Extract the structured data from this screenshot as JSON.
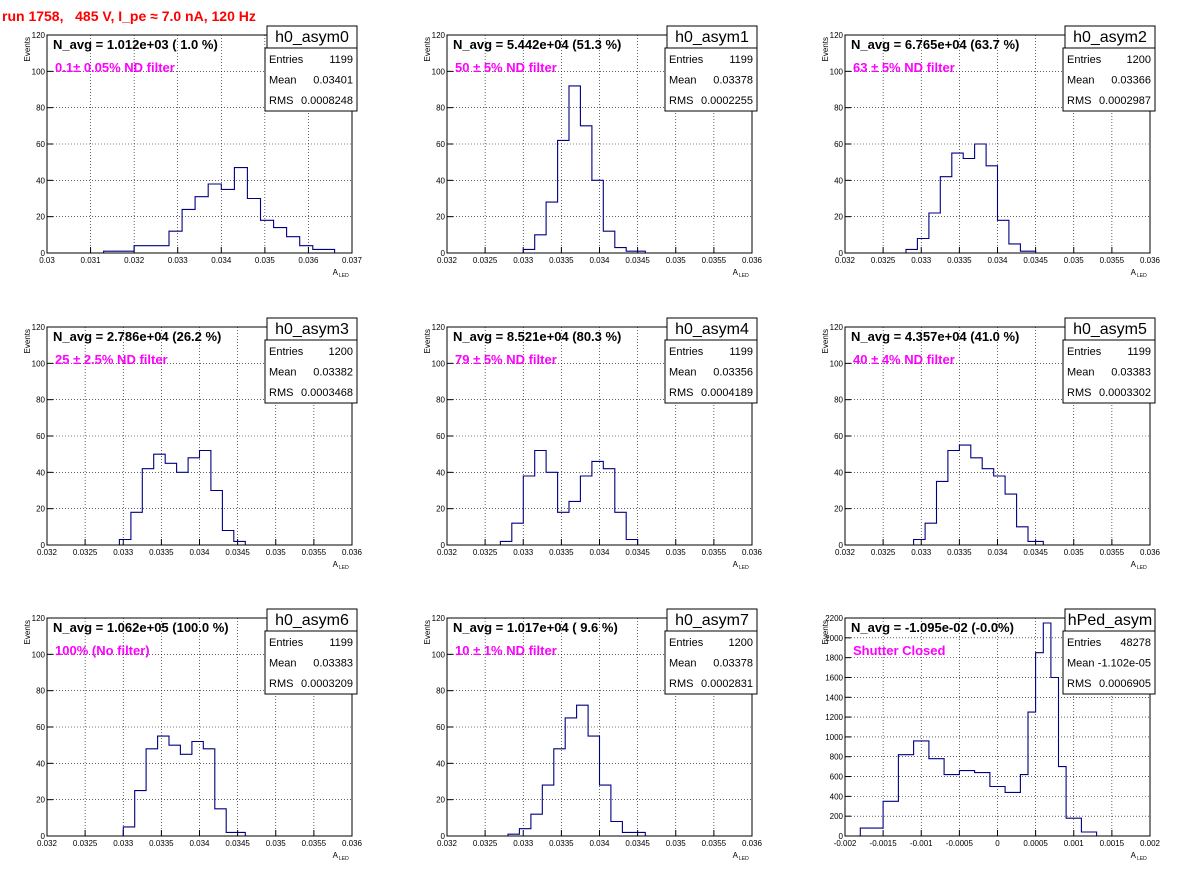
{
  "header": {
    "run_title": "run 1758,   485 V, I_pe ≈ 7.0 nA, 120 Hz"
  },
  "chart_data": [
    {
      "type": "bar",
      "title": "h0_asym0",
      "navg": "N_avg = 1.012e+03 ( 1.0 %)",
      "filter": "0.1± 0.05% ND filter",
      "stats": {
        "entries": "1199",
        "mean": "0.03401",
        "rms": "0.0008248"
      },
      "xlabel": "A",
      "xlabel_sub": "LED",
      "ylabel": "Events",
      "xlim": [
        0.03,
        0.037
      ],
      "ylim": [
        0,
        120
      ],
      "xticks": [
        0.03,
        0.031,
        0.032,
        0.033,
        0.034,
        0.035,
        0.036,
        0.037
      ],
      "xtick_labels": [
        "0.03",
        "0.031",
        "0.032",
        "0.033",
        "0.034",
        "0.035",
        "0.036",
        "0.037"
      ],
      "yticks": [
        0,
        20,
        40,
        60,
        80,
        100,
        120
      ],
      "ytick_labels": [
        "0",
        "20",
        "40",
        "60",
        "80",
        "100",
        "120"
      ],
      "bin_edges": [
        0.0313,
        0.032,
        0.0328,
        0.0331,
        0.0334,
        0.0337,
        0.034,
        0.0343,
        0.0346,
        0.0349,
        0.0352,
        0.0355,
        0.0358,
        0.0361,
        0.0366
      ],
      "values": [
        1,
        4,
        12,
        24,
        31,
        38,
        35,
        47,
        30,
        18,
        14,
        9,
        4,
        2
      ]
    },
    {
      "type": "bar",
      "title": "h0_asym1",
      "navg": "N_avg = 5.442e+04 (51.3 %)",
      "filter": "50 ± 5% ND filter",
      "stats": {
        "entries": "1199",
        "mean": "0.03378",
        "rms": "0.0002255"
      },
      "xlabel": "A",
      "xlabel_sub": "LED",
      "ylabel": "Events",
      "xlim": [
        0.032,
        0.036
      ],
      "ylim": [
        0,
        120
      ],
      "xticks": [
        0.032,
        0.0325,
        0.033,
        0.0335,
        0.034,
        0.0345,
        0.035,
        0.0355,
        0.036
      ],
      "xtick_labels": [
        "0.032",
        "0.0325",
        "0.033",
        "0.0335",
        "0.034",
        "0.0345",
        "0.035",
        "0.0355",
        "0.036"
      ],
      "yticks": [
        0,
        20,
        40,
        60,
        80,
        100,
        120
      ],
      "ytick_labels": [
        "0",
        "20",
        "40",
        "60",
        "80",
        "100",
        "120"
      ],
      "bin_edges": [
        0.033,
        0.03315,
        0.0333,
        0.03345,
        0.0336,
        0.03375,
        0.0339,
        0.03405,
        0.0342,
        0.03435,
        0.0346
      ],
      "values": [
        2,
        10,
        28,
        62,
        92,
        70,
        40,
        12,
        3,
        1
      ]
    },
    {
      "type": "bar",
      "title": "h0_asym2",
      "navg": "N_avg = 6.765e+04 (63.7 %)",
      "filter": "63 ± 5% ND filter",
      "stats": {
        "entries": "1200",
        "mean": "0.03366",
        "rms": "0.0002987"
      },
      "xlabel": "A",
      "xlabel_sub": "LED",
      "ylabel": "Events",
      "xlim": [
        0.032,
        0.036
      ],
      "ylim": [
        0,
        120
      ],
      "xticks": [
        0.032,
        0.0325,
        0.033,
        0.0335,
        0.034,
        0.0345,
        0.035,
        0.0355,
        0.036
      ],
      "xtick_labels": [
        "0.032",
        "0.0325",
        "0.033",
        "0.0335",
        "0.034",
        "0.0345",
        "0.035",
        "0.0355",
        "0.036"
      ],
      "yticks": [
        0,
        20,
        40,
        60,
        80,
        100,
        120
      ],
      "ytick_labels": [
        "0",
        "20",
        "40",
        "60",
        "80",
        "100",
        "120"
      ],
      "bin_edges": [
        0.0328,
        0.03295,
        0.0331,
        0.03325,
        0.0334,
        0.03355,
        0.0337,
        0.03385,
        0.034,
        0.03415,
        0.0343,
        0.0345
      ],
      "values": [
        2,
        8,
        22,
        42,
        55,
        52,
        60,
        48,
        18,
        5,
        1
      ]
    },
    {
      "type": "bar",
      "title": "h0_asym3",
      "navg": "N_avg = 2.786e+04 (26.2 %)",
      "filter": "25 ± 2.5% ND filter",
      "stats": {
        "entries": "1200",
        "mean": "0.03382",
        "rms": "0.0003468"
      },
      "xlabel": "A",
      "xlabel_sub": "LED",
      "ylabel": "Events",
      "xlim": [
        0.032,
        0.036
      ],
      "ylim": [
        0,
        120
      ],
      "xticks": [
        0.032,
        0.0325,
        0.033,
        0.0335,
        0.034,
        0.0345,
        0.035,
        0.0355,
        0.036
      ],
      "xtick_labels": [
        "0.032",
        "0.0325",
        "0.033",
        "0.0335",
        "0.034",
        "0.0345",
        "0.035",
        "0.0355",
        "0.036"
      ],
      "yticks": [
        0,
        20,
        40,
        60,
        80,
        100,
        120
      ],
      "ytick_labels": [
        "0",
        "20",
        "40",
        "60",
        "80",
        "100",
        "120"
      ],
      "bin_edges": [
        0.03295,
        0.0331,
        0.03325,
        0.0334,
        0.03355,
        0.0337,
        0.03385,
        0.034,
        0.03415,
        0.0343,
        0.03445,
        0.0346
      ],
      "values": [
        3,
        18,
        42,
        50,
        45,
        40,
        48,
        52,
        30,
        8,
        2
      ]
    },
    {
      "type": "bar",
      "title": "h0_asym4",
      "navg": "N_avg = 8.521e+04 (80.3 %)",
      "filter": "79 ± 5% ND filter",
      "stats": {
        "entries": "1199",
        "mean": "0.03356",
        "rms": "0.0004189"
      },
      "xlabel": "A",
      "xlabel_sub": "LED",
      "ylabel": "Events",
      "xlim": [
        0.032,
        0.036
      ],
      "ylim": [
        0,
        120
      ],
      "xticks": [
        0.032,
        0.0325,
        0.033,
        0.0335,
        0.034,
        0.0345,
        0.035,
        0.0355,
        0.036
      ],
      "xtick_labels": [
        "0.032",
        "0.0325",
        "0.033",
        "0.0335",
        "0.034",
        "0.0345",
        "0.035",
        "0.0355",
        "0.036"
      ],
      "yticks": [
        0,
        20,
        40,
        60,
        80,
        100,
        120
      ],
      "ytick_labels": [
        "0",
        "20",
        "40",
        "60",
        "80",
        "100",
        "120"
      ],
      "bin_edges": [
        0.0327,
        0.03285,
        0.033,
        0.03315,
        0.0333,
        0.03345,
        0.0336,
        0.03375,
        0.0339,
        0.03405,
        0.0342,
        0.03435,
        0.0345
      ],
      "values": [
        2,
        12,
        38,
        52,
        40,
        18,
        24,
        38,
        46,
        42,
        18,
        3
      ]
    },
    {
      "type": "bar",
      "title": "h0_asym5",
      "navg": "N_avg = 4.357e+04 (41.0 %)",
      "filter": "40 ± 4% ND filter",
      "stats": {
        "entries": "1199",
        "mean": "0.03383",
        "rms": "0.0003302"
      },
      "xlabel": "A",
      "xlabel_sub": "LED",
      "ylabel": "Events",
      "xlim": [
        0.032,
        0.036
      ],
      "ylim": [
        0,
        120
      ],
      "xticks": [
        0.032,
        0.0325,
        0.033,
        0.0335,
        0.034,
        0.0345,
        0.035,
        0.0355,
        0.036
      ],
      "xtick_labels": [
        "0.032",
        "0.0325",
        "0.033",
        "0.0335",
        "0.034",
        "0.0345",
        "0.035",
        "0.0355",
        "0.036"
      ],
      "yticks": [
        0,
        20,
        40,
        60,
        80,
        100,
        120
      ],
      "ytick_labels": [
        "0",
        "20",
        "40",
        "60",
        "80",
        "100",
        "120"
      ],
      "bin_edges": [
        0.0329,
        0.03305,
        0.0332,
        0.03335,
        0.0335,
        0.03365,
        0.0338,
        0.03395,
        0.0341,
        0.03425,
        0.0344,
        0.0346
      ],
      "values": [
        3,
        12,
        35,
        52,
        55,
        48,
        42,
        38,
        28,
        10,
        2
      ]
    },
    {
      "type": "bar",
      "title": "h0_asym6",
      "navg": "N_avg = 1.062e+05 (100.0 %)",
      "filter": "100% (No filter)",
      "stats": {
        "entries": "1199",
        "mean": "0.03383",
        "rms": "0.0003209"
      },
      "xlabel": "A",
      "xlabel_sub": "LED",
      "ylabel": "Events",
      "xlim": [
        0.032,
        0.036
      ],
      "ylim": [
        0,
        120
      ],
      "xticks": [
        0.032,
        0.0325,
        0.033,
        0.0335,
        0.034,
        0.0345,
        0.035,
        0.0355,
        0.036
      ],
      "xtick_labels": [
        "0.032",
        "0.0325",
        "0.033",
        "0.0335",
        "0.034",
        "0.0345",
        "0.035",
        "0.0355",
        "0.036"
      ],
      "yticks": [
        0,
        20,
        40,
        60,
        80,
        100,
        120
      ],
      "ytick_labels": [
        "0",
        "20",
        "40",
        "60",
        "80",
        "100",
        "120"
      ],
      "bin_edges": [
        0.033,
        0.03315,
        0.0333,
        0.03345,
        0.0336,
        0.03375,
        0.0339,
        0.03405,
        0.0342,
        0.03435,
        0.0346
      ],
      "values": [
        5,
        25,
        48,
        55,
        50,
        45,
        52,
        48,
        15,
        2
      ]
    },
    {
      "type": "bar",
      "title": "h0_asym7",
      "navg": "N_avg = 1.017e+04 ( 9.6 %)",
      "filter": "10 ± 1% ND filter",
      "stats": {
        "entries": "1200",
        "mean": "0.03378",
        "rms": "0.0002831"
      },
      "xlabel": "A",
      "xlabel_sub": "LED",
      "ylabel": "Events",
      "xlim": [
        0.032,
        0.036
      ],
      "ylim": [
        0,
        120
      ],
      "xticks": [
        0.032,
        0.0325,
        0.033,
        0.0335,
        0.034,
        0.0345,
        0.035,
        0.0355,
        0.036
      ],
      "xtick_labels": [
        "0.032",
        "0.0325",
        "0.033",
        "0.0335",
        "0.034",
        "0.0345",
        "0.035",
        "0.0355",
        "0.036"
      ],
      "yticks": [
        0,
        20,
        40,
        60,
        80,
        100,
        120
      ],
      "ytick_labels": [
        "0",
        "20",
        "40",
        "60",
        "80",
        "100",
        "120"
      ],
      "bin_edges": [
        0.0328,
        0.03295,
        0.0331,
        0.03325,
        0.0334,
        0.03355,
        0.0337,
        0.03385,
        0.034,
        0.03415,
        0.0343,
        0.0346
      ],
      "values": [
        1,
        4,
        12,
        28,
        48,
        65,
        72,
        55,
        28,
        8,
        2
      ]
    },
    {
      "type": "bar",
      "title": "hPed_asym",
      "navg": "N_avg = -1.095e-02 (-0.0%)",
      "filter": "Shutter Closed",
      "stats": {
        "entries": "48278",
        "mean": "-1.102e-05",
        "rms": "0.0006905"
      },
      "xlabel": "A",
      "xlabel_sub": "LED",
      "ylabel": "Events",
      "xlim": [
        -0.002,
        0.002
      ],
      "ylim": [
        0,
        2200
      ],
      "xticks": [
        -0.002,
        -0.0015,
        -0.001,
        -0.0005,
        0,
        0.0005,
        0.001,
        0.0015,
        0.002
      ],
      "xtick_labels": [
        "-0.002",
        "-0.0015",
        "-0.001",
        "-0.0005",
        "0",
        "0.0005",
        "0.001",
        "0.0015",
        "0.002"
      ],
      "yticks": [
        0,
        200,
        400,
        600,
        800,
        1000,
        1200,
        1400,
        1600,
        1800,
        2000,
        2200
      ],
      "ytick_labels": [
        "0",
        "200",
        "400",
        "600",
        "800",
        "1000",
        "1200",
        "1400",
        "1600",
        "1800",
        "2000",
        "2200"
      ],
      "bin_edges": [
        -0.0018,
        -0.0015,
        -0.0013,
        -0.0011,
        -0.0009,
        -0.0007,
        -0.0005,
        -0.0003,
        -0.0001,
        0.0001,
        0.0003,
        0.0004,
        0.0005,
        0.0006,
        0.0007,
        0.0008,
        0.0009,
        0.0011,
        0.0013
      ],
      "values": [
        80,
        350,
        820,
        960,
        780,
        620,
        660,
        640,
        500,
        440,
        620,
        1250,
        1850,
        2150,
        1600,
        700,
        180,
        40
      ]
    }
  ]
}
